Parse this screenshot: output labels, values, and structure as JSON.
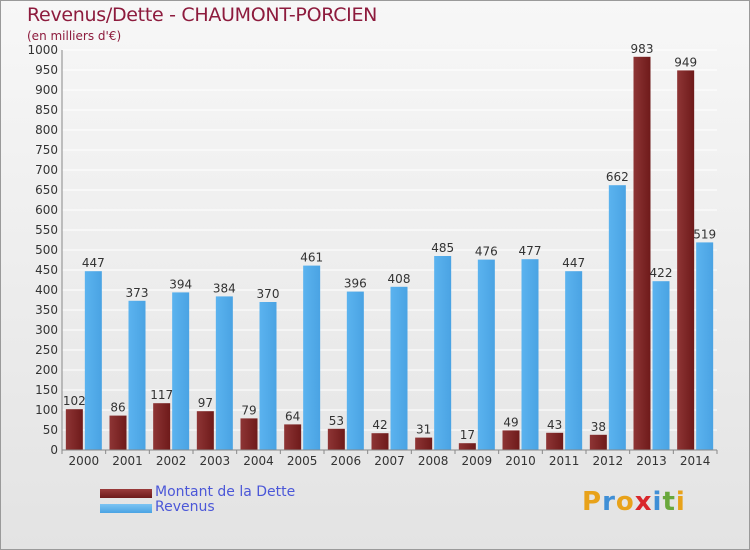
{
  "header": {
    "title": "Revenus/Dette - CHAUMONT-PORCIEN",
    "subtitle": "(en milliers d'€)"
  },
  "logo": {
    "text": "Proxiti",
    "letters": [
      {
        "ch": "P",
        "color": "#e8a21a"
      },
      {
        "ch": "r",
        "color": "#3f8fd6"
      },
      {
        "ch": "o",
        "color": "#e8a21a"
      },
      {
        "ch": "x",
        "color": "#d9262b"
      },
      {
        "ch": "i",
        "color": "#3f8fd6"
      },
      {
        "ch": "t",
        "color": "#6aa83c"
      },
      {
        "ch": "i",
        "color": "#e8a21a"
      }
    ]
  },
  "colors": {
    "dette": "#6e1a1a",
    "revenus": "#4aa3e3",
    "axis_text": "#333333",
    "grid": "#ffffff"
  },
  "chart_data": {
    "type": "bar",
    "title": "Revenus/Dette - CHAUMONT-PORCIEN",
    "ylabel": "(en milliers d'€)",
    "xlabel": "",
    "ylim": [
      0,
      1000
    ],
    "yticks": [
      0,
      50,
      100,
      150,
      200,
      250,
      300,
      350,
      400,
      450,
      500,
      550,
      600,
      650,
      700,
      750,
      800,
      850,
      900,
      950,
      1000
    ],
    "grid": true,
    "legend_position": "bottom-left",
    "categories": [
      "2000",
      "2001",
      "2002",
      "2003",
      "2004",
      "2005",
      "2006",
      "2007",
      "2008",
      "2009",
      "2010",
      "2011",
      "2012",
      "2013",
      "2014"
    ],
    "series": [
      {
        "name": "Montant de la Dette",
        "color": "#6e1a1a",
        "values": [
          102,
          86,
          117,
          97,
          79,
          64,
          53,
          42,
          31,
          17,
          49,
          43,
          38,
          983,
          949
        ]
      },
      {
        "name": "Revenus",
        "color": "#4aa3e3",
        "values": [
          447,
          373,
          394,
          384,
          370,
          461,
          396,
          408,
          485,
          476,
          477,
          447,
          662,
          422,
          519
        ]
      }
    ]
  }
}
